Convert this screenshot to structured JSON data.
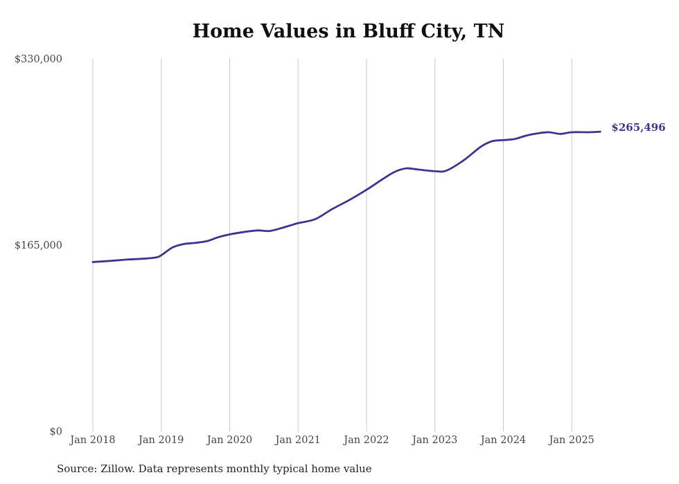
{
  "chart_data": {
    "type": "line",
    "title": "Home Values in Bluff City, TN",
    "xlabel": "",
    "ylabel": "",
    "source_note": "Source: Zillow. Data represents monthly typical home value",
    "grid": "vertical lines at each year",
    "ylim": [
      0,
      330000
    ],
    "yticks": [
      "$0",
      "$165,000",
      "$330,000"
    ],
    "xticks": [
      "Jan 2018",
      "Jan 2019",
      "Jan 2020",
      "Jan 2021",
      "Jan 2022",
      "Jan 2023",
      "Jan 2024",
      "Jan 2025"
    ],
    "line_color": "#3a3590",
    "end_label": "$265,496",
    "series": [
      {
        "x": [
          "2018-01",
          "2018-04",
          "2018-07",
          "2018-10",
          "2018-12",
          "2019-01",
          "2019-03",
          "2019-05",
          "2019-07",
          "2019-09",
          "2019-11",
          "2020-01",
          "2020-04",
          "2020-06",
          "2020-08",
          "2020-10",
          "2020-12",
          "2021-01",
          "2021-04",
          "2021-07",
          "2021-10",
          "2022-01",
          "2022-04",
          "2022-06",
          "2022-08",
          "2022-10",
          "2023-01",
          "2023-03",
          "2023-06",
          "2023-09",
          "2023-11",
          "2024-01",
          "2024-03",
          "2024-05",
          "2024-07",
          "2024-09",
          "2024-11",
          "2025-01",
          "2025-04",
          "2025-06"
        ],
        "values": [
          150000,
          151000,
          152200,
          153000,
          154000,
          156000,
          163000,
          166000,
          167000,
          168500,
          172000,
          174500,
          177000,
          178000,
          177500,
          180000,
          183000,
          184500,
          188000,
          197000,
          205000,
          214000,
          224000,
          230000,
          233000,
          232000,
          230500,
          231000,
          240000,
          252000,
          257000,
          258000,
          259000,
          262000,
          264000,
          265000,
          263500,
          265000,
          265000,
          265496
        ]
      }
    ]
  }
}
